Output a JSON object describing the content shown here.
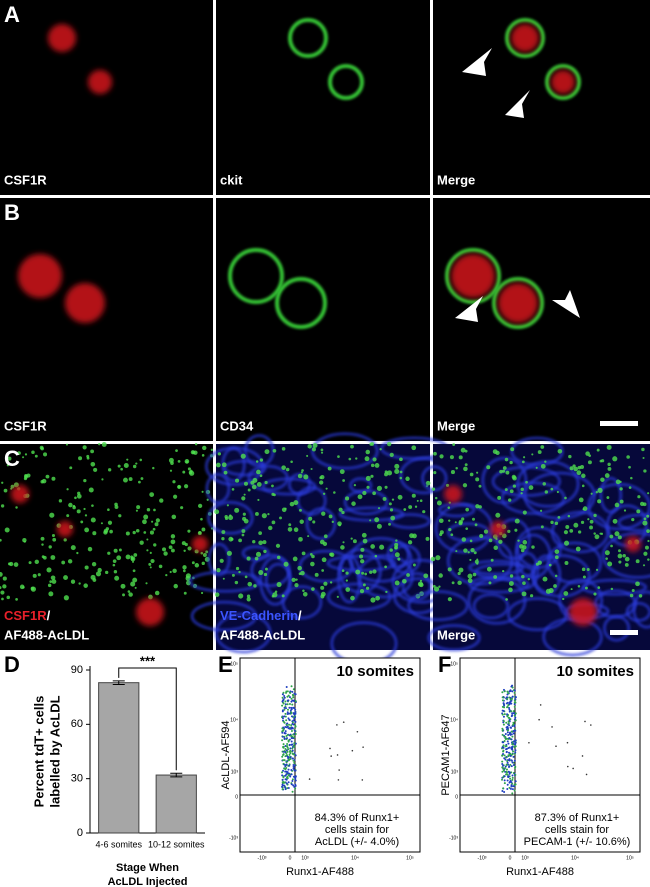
{
  "panels": {
    "A": {
      "letter": "A",
      "labels": [
        "CSF1R",
        "ckit",
        "Merge"
      ]
    },
    "B": {
      "letter": "B",
      "labels": [
        "CSF1R",
        "CD34",
        "Merge"
      ]
    },
    "C": {
      "letter": "C",
      "labels": [
        [
          "CSF1R",
          "/",
          "AF488-AcLDL"
        ],
        [
          "VE-Cadherin",
          "/",
          "AF488-AcLDL"
        ],
        "Merge"
      ]
    },
    "E": {
      "letter": "E",
      "title": "10 somites",
      "y_label": "AcLDL-AF594",
      "x_label": "Runx1-AF488",
      "note": [
        "84.3% of Runx1+",
        "cells stain for",
        "AcLDL (+/- 4.0%)"
      ],
      "y_ticks": [
        "10⁵",
        "10⁴",
        "10³",
        "0",
        "-10³"
      ],
      "x_ticks": [
        "-10³",
        "0",
        "10³",
        "10⁴",
        "10⁵"
      ]
    },
    "F": {
      "letter": "F",
      "title": "10 somites",
      "y_label": "PECAM1-AF647",
      "x_label": "Runx1-AF488",
      "note": [
        "87.3% of Runx1+",
        "cells stain for",
        "PECAM-1 (+/- 10.6%)"
      ],
      "y_ticks": [
        "10⁵",
        "10⁴",
        "10³",
        "0",
        "-10³"
      ],
      "x_ticks": [
        "-10³",
        "0",
        "10³",
        "10⁴",
        "10⁵"
      ]
    }
  },
  "chart_data": {
    "type": "bar",
    "letter": "D",
    "ylabel": [
      "Percent tdT+ cells",
      "labelled by AcLDL"
    ],
    "xlabel": [
      "Stage When",
      "AcLDL Injected"
    ],
    "categories": [
      "4-6 somites",
      "10-12 somites"
    ],
    "values": [
      83,
      32
    ],
    "errors": [
      1,
      1
    ],
    "color": "#a6a6a6",
    "significance": "***",
    "ylim": [
      0,
      90
    ],
    "yticks": [
      0,
      30,
      60,
      90
    ]
  }
}
